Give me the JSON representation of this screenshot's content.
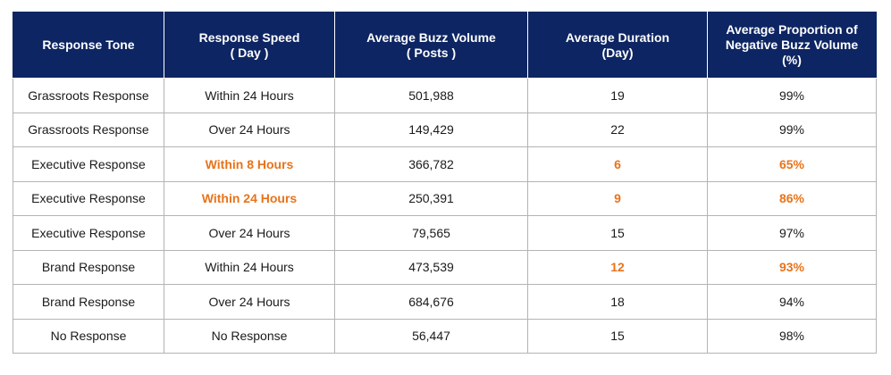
{
  "table": {
    "columns": [
      {
        "lines": [
          "Response Tone"
        ]
      },
      {
        "lines": [
          "Response Speed",
          "( Day )"
        ]
      },
      {
        "lines": [
          "Average Buzz Volume",
          "( Posts )"
        ]
      },
      {
        "lines": [
          "Average Duration",
          "(Day)"
        ]
      },
      {
        "lines": [
          "Average Proportion of",
          "Negative Buzz Volume",
          "(%)"
        ]
      }
    ],
    "rows": [
      {
        "cells": [
          {
            "text": "Grassroots Response",
            "highlight": false
          },
          {
            "text": "Within 24 Hours",
            "highlight": false
          },
          {
            "text": "501,988",
            "highlight": false
          },
          {
            "text": "19",
            "highlight": false
          },
          {
            "text": "99%",
            "highlight": false
          }
        ]
      },
      {
        "cells": [
          {
            "text": "Grassroots Response",
            "highlight": false
          },
          {
            "text": "Over 24 Hours",
            "highlight": false
          },
          {
            "text": "149,429",
            "highlight": false
          },
          {
            "text": "22",
            "highlight": false
          },
          {
            "text": "99%",
            "highlight": false
          }
        ]
      },
      {
        "cells": [
          {
            "text": "Executive Response",
            "highlight": false
          },
          {
            "text": "Within 8 Hours",
            "highlight": true
          },
          {
            "text": "366,782",
            "highlight": false
          },
          {
            "text": "6",
            "highlight": true
          },
          {
            "text": "65%",
            "highlight": true
          }
        ]
      },
      {
        "cells": [
          {
            "text": "Executive Response",
            "highlight": false
          },
          {
            "text": "Within 24 Hours",
            "highlight": true
          },
          {
            "text": "250,391",
            "highlight": false
          },
          {
            "text": "9",
            "highlight": true
          },
          {
            "text": "86%",
            "highlight": true
          }
        ]
      },
      {
        "cells": [
          {
            "text": "Executive Response",
            "highlight": false
          },
          {
            "text": "Over 24 Hours",
            "highlight": false
          },
          {
            "text": "79,565",
            "highlight": false
          },
          {
            "text": "15",
            "highlight": false
          },
          {
            "text": "97%",
            "highlight": false
          }
        ]
      },
      {
        "cells": [
          {
            "text": "Brand Response",
            "highlight": false
          },
          {
            "text": "Within 24 Hours",
            "highlight": false
          },
          {
            "text": "473,539",
            "highlight": false
          },
          {
            "text": "12",
            "highlight": true
          },
          {
            "text": "93%",
            "highlight": true
          }
        ]
      },
      {
        "cells": [
          {
            "text": "Brand Response",
            "highlight": false
          },
          {
            "text": "Over 24 Hours",
            "highlight": false
          },
          {
            "text": "684,676",
            "highlight": false
          },
          {
            "text": "18",
            "highlight": false
          },
          {
            "text": "94%",
            "highlight": false
          }
        ]
      },
      {
        "cells": [
          {
            "text": "No Response",
            "highlight": false
          },
          {
            "text": "No Response",
            "highlight": false
          },
          {
            "text": "56,447",
            "highlight": false
          },
          {
            "text": "15",
            "highlight": false
          },
          {
            "text": "98%",
            "highlight": false
          }
        ]
      }
    ]
  },
  "colors": {
    "header_bg": "#0d2562",
    "header_text": "#ffffff",
    "highlight_text": "#e8731a",
    "body_text": "#1a1a1a",
    "grid": "#b4b4b4"
  }
}
